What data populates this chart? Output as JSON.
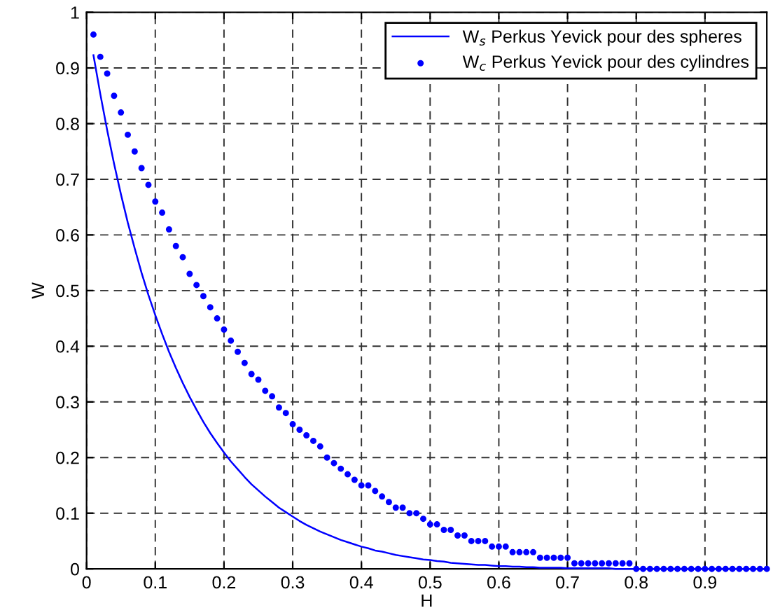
{
  "chart_data": {
    "type": "line",
    "xlabel": "H",
    "ylabel": "W",
    "x": [
      0.01,
      0.02,
      0.03,
      0.04,
      0.05,
      0.06,
      0.07,
      0.08,
      0.09,
      0.1,
      0.11,
      0.12,
      0.13,
      0.14,
      0.15,
      0.16,
      0.17,
      0.18,
      0.19,
      0.2,
      0.21,
      0.22,
      0.23,
      0.24,
      0.25,
      0.26,
      0.27,
      0.28,
      0.29,
      0.3,
      0.31,
      0.32,
      0.33,
      0.34,
      0.35,
      0.36,
      0.37,
      0.38,
      0.39,
      0.4,
      0.41,
      0.42,
      0.43,
      0.44,
      0.45,
      0.46,
      0.47,
      0.48,
      0.49,
      0.5,
      0.51,
      0.52,
      0.53,
      0.54,
      0.55,
      0.56,
      0.57,
      0.58,
      0.59,
      0.6,
      0.61,
      0.62,
      0.63,
      0.64,
      0.65,
      0.66,
      0.67,
      0.68,
      0.69,
      0.7,
      0.71,
      0.72,
      0.73,
      0.74,
      0.75,
      0.76,
      0.77,
      0.78,
      0.79,
      0.8,
      0.81,
      0.82,
      0.83,
      0.84,
      0.85,
      0.86,
      0.87,
      0.88,
      0.89,
      0.9,
      0.91,
      0.92,
      0.93,
      0.94,
      0.95,
      0.96,
      0.97,
      0.98,
      0.99
    ],
    "series": [
      {
        "name": "W$_{s}$ Perkus Yevick pour des spheres",
        "line_style": "solid",
        "color": "#0000ff",
        "values": [
          0.923,
          0.853,
          0.788,
          0.728,
          0.673,
          0.622,
          0.576,
          0.532,
          0.492,
          0.456,
          0.422,
          0.39,
          0.361,
          0.334,
          0.309,
          0.286,
          0.264,
          0.244,
          0.226,
          0.209,
          0.193,
          0.179,
          0.165,
          0.152,
          0.141,
          0.13,
          0.12,
          0.11,
          0.102,
          0.094,
          0.086,
          0.079,
          0.073,
          0.067,
          0.062,
          0.057,
          0.052,
          0.048,
          0.044,
          0.04,
          0.037,
          0.033,
          0.031,
          0.028,
          0.025,
          0.023,
          0.021,
          0.019,
          0.017,
          0.016,
          0.014,
          0.013,
          0.011,
          0.01,
          0.009,
          0.008,
          0.007,
          0.007,
          0.006,
          0.005,
          0.005,
          0.004,
          0.004,
          0.003,
          0.003,
          0.002,
          0.002,
          0.002,
          0.002,
          0.001,
          0.001,
          0.001,
          0.001,
          0.001,
          0.001,
          0.001,
          0,
          0,
          0,
          0,
          0,
          0,
          0,
          0,
          0,
          0,
          0,
          0,
          0,
          0,
          0,
          0,
          0,
          0,
          0,
          0,
          0,
          0,
          0
        ]
      },
      {
        "name": "W$_{c}$ Perkus Yevick pour des cylindres",
        "type": "scatter",
        "marker": "circle",
        "color": "#0000ff",
        "values": [
          0.96,
          0.92,
          0.89,
          0.85,
          0.82,
          0.78,
          0.75,
          0.72,
          0.69,
          0.66,
          0.64,
          0.61,
          0.58,
          0.56,
          0.53,
          0.51,
          0.49,
          0.47,
          0.45,
          0.43,
          0.41,
          0.39,
          0.37,
          0.35,
          0.34,
          0.32,
          0.31,
          0.29,
          0.28,
          0.26,
          0.25,
          0.24,
          0.23,
          0.22,
          0.2,
          0.19,
          0.18,
          0.17,
          0.16,
          0.15,
          0.15,
          0.14,
          0.13,
          0.12,
          0.11,
          0.11,
          0.1,
          0.1,
          0.09,
          0.08,
          0.08,
          0.07,
          0.07,
          0.06,
          0.06,
          0.05,
          0.05,
          0.05,
          0.04,
          0.04,
          0.04,
          0.03,
          0.03,
          0.03,
          0.03,
          0.02,
          0.02,
          0.02,
          0.02,
          0.02,
          0.01,
          0.01,
          0.01,
          0.01,
          0.01,
          0.01,
          0.01,
          0.01,
          0.01,
          0,
          0,
          0,
          0,
          0,
          0,
          0,
          0,
          0,
          0,
          0,
          0,
          0,
          0,
          0,
          0,
          0,
          0,
          0,
          0
        ]
      }
    ],
    "xlim": [
      0,
      0.99
    ],
    "xticks": [
      0,
      0.1,
      0.2,
      0.3,
      0.4,
      0.5,
      0.6,
      0.7,
      0.8,
      0.9
    ],
    "ylim": [
      0,
      1
    ],
    "yticks": [
      0,
      0.1,
      0.2,
      0.3,
      0.4,
      0.5,
      0.6,
      0.7,
      0.8,
      0.9,
      1
    ],
    "grid": true,
    "legend": "top right"
  }
}
